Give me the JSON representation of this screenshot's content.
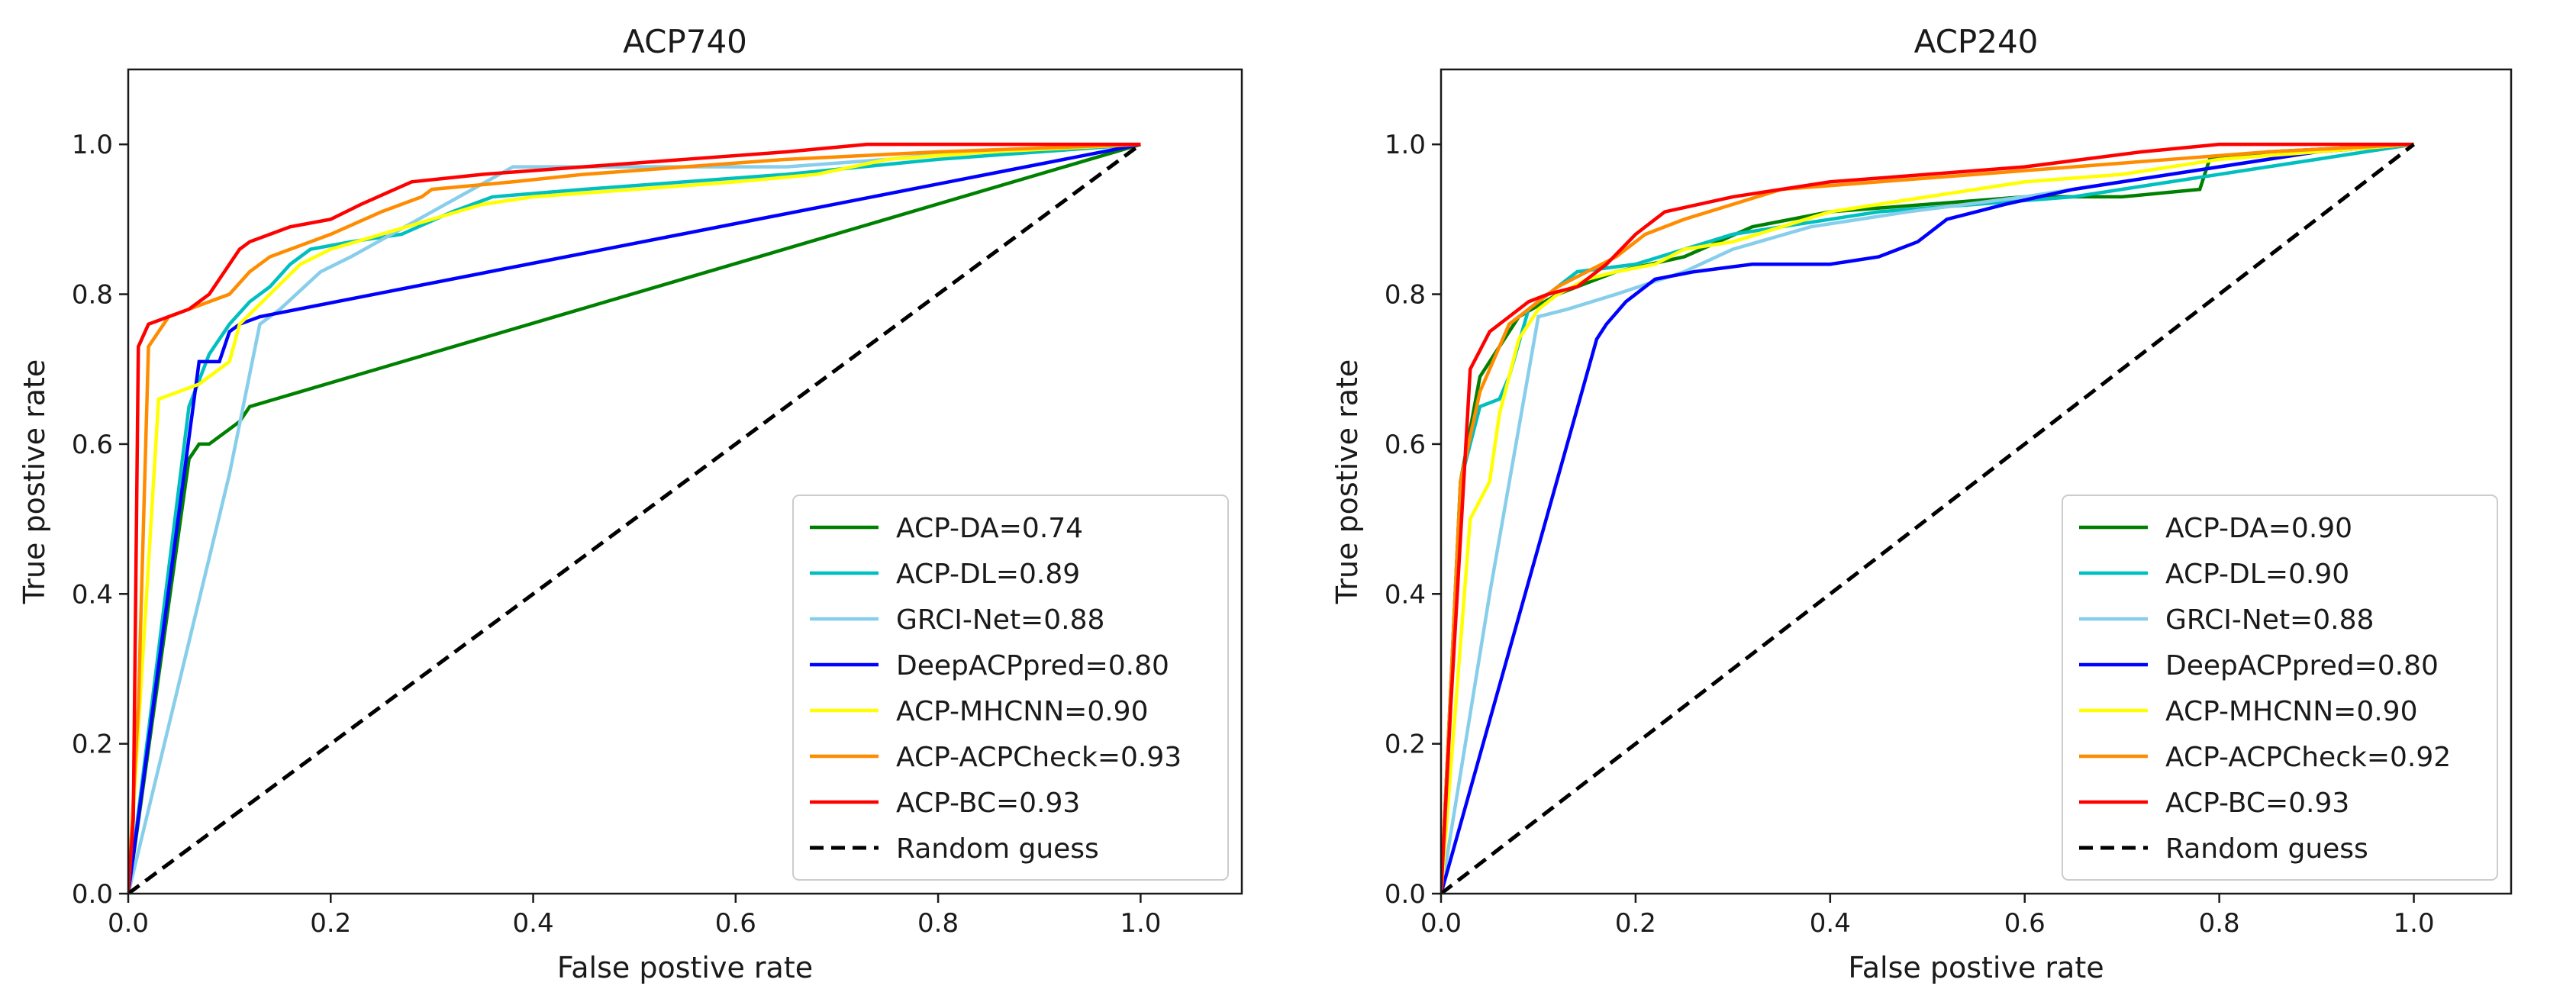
{
  "chart_data": [
    {
      "type": "line",
      "title": "ACP740",
      "xlabel": "False postive rate",
      "ylabel": "True postive rate",
      "xlim": [
        0,
        1.1
      ],
      "ylim": [
        0,
        1.1
      ],
      "xticks": [
        "0.0",
        "0.2",
        "0.4",
        "0.6",
        "0.8",
        "1.0"
      ],
      "yticks": [
        "0.0",
        "0.2",
        "0.4",
        "0.6",
        "0.8",
        "1.0"
      ],
      "legend_position": "lower-right",
      "series": [
        {
          "name": "ACP-DA=0.74",
          "color": "#008000",
          "x": [
            0,
            0.06,
            0.07,
            0.08,
            0.09,
            0.1,
            0.11,
            0.12,
            1.0
          ],
          "y": [
            0,
            0.58,
            0.6,
            0.6,
            0.61,
            0.62,
            0.63,
            0.65,
            1.0
          ]
        },
        {
          "name": "ACP-DL=0.89",
          "color": "#00bfbf",
          "x": [
            0,
            0.06,
            0.08,
            0.1,
            0.12,
            0.14,
            0.16,
            0.18,
            0.22,
            0.27,
            0.32,
            0.36,
            0.45,
            0.55,
            0.65,
            0.8,
            1.0
          ],
          "y": [
            0,
            0.65,
            0.72,
            0.76,
            0.79,
            0.81,
            0.84,
            0.86,
            0.87,
            0.88,
            0.91,
            0.93,
            0.94,
            0.95,
            0.96,
            0.98,
            1.0
          ]
        },
        {
          "name": "GRCI-Net=0.88",
          "color": "#87ceeb",
          "x": [
            0,
            0.1,
            0.13,
            0.15,
            0.19,
            0.22,
            0.26,
            0.3,
            0.38,
            0.5,
            0.65,
            0.75,
            0.82,
            1.0
          ],
          "y": [
            0,
            0.56,
            0.76,
            0.78,
            0.83,
            0.85,
            0.88,
            0.91,
            0.97,
            0.97,
            0.97,
            0.98,
            0.99,
            1.0
          ]
        },
        {
          "name": "DeepACPpred=0.80",
          "color": "#0000ff",
          "x": [
            0,
            0.07,
            0.09,
            0.1,
            0.11,
            0.13,
            1.0
          ],
          "y": [
            0,
            0.71,
            0.71,
            0.75,
            0.76,
            0.77,
            1.0
          ]
        },
        {
          "name": "ACP-MHCNN=0.90",
          "color": "#ffff00",
          "x": [
            0,
            0.03,
            0.07,
            0.1,
            0.11,
            0.14,
            0.17,
            0.2,
            0.25,
            0.3,
            0.35,
            0.4,
            0.5,
            0.6,
            0.68,
            0.75,
            0.85,
            1.0
          ],
          "y": [
            0,
            0.66,
            0.68,
            0.71,
            0.76,
            0.8,
            0.84,
            0.86,
            0.88,
            0.9,
            0.92,
            0.93,
            0.94,
            0.95,
            0.96,
            0.98,
            0.99,
            1.0
          ]
        },
        {
          "name": "ACP-ACPCheck=0.93",
          "color": "#ff8c00",
          "x": [
            0,
            0.01,
            0.02,
            0.04,
            0.06,
            0.08,
            0.1,
            0.12,
            0.14,
            0.16,
            0.2,
            0.25,
            0.29,
            0.3,
            0.38,
            0.45,
            0.55,
            0.65,
            0.8,
            1.0
          ],
          "y": [
            0,
            0.25,
            0.73,
            0.77,
            0.78,
            0.79,
            0.8,
            0.83,
            0.85,
            0.86,
            0.88,
            0.91,
            0.93,
            0.94,
            0.95,
            0.96,
            0.97,
            0.98,
            0.99,
            1.0
          ]
        },
        {
          "name": "ACP-BC=0.93",
          "color": "#ff0000",
          "x": [
            0,
            0.005,
            0.01,
            0.02,
            0.04,
            0.06,
            0.08,
            0.09,
            0.1,
            0.11,
            0.12,
            0.14,
            0.16,
            0.2,
            0.23,
            0.28,
            0.35,
            0.45,
            0.55,
            0.65,
            0.73,
            0.8,
            1.0
          ],
          "y": [
            0,
            0.1,
            0.73,
            0.76,
            0.77,
            0.78,
            0.8,
            0.82,
            0.84,
            0.86,
            0.87,
            0.88,
            0.89,
            0.9,
            0.92,
            0.95,
            0.96,
            0.97,
            0.98,
            0.99,
            1.0,
            1.0,
            1.0
          ]
        },
        {
          "name": "Random guess",
          "color": "#000000",
          "dashed": true,
          "x": [
            0,
            1
          ],
          "y": [
            0,
            1
          ]
        }
      ]
    },
    {
      "type": "line",
      "title": "ACP240",
      "xlabel": "False postive rate",
      "ylabel": "True postive rate",
      "xlim": [
        0,
        1.1
      ],
      "ylim": [
        0,
        1.1
      ],
      "xticks": [
        "0.0",
        "0.2",
        "0.4",
        "0.6",
        "0.8",
        "1.0"
      ],
      "yticks": [
        "0.0",
        "0.2",
        "0.4",
        "0.6",
        "0.8",
        "1.0"
      ],
      "legend_position": "lower-right",
      "series": [
        {
          "name": "ACP-DA=0.90",
          "color": "#008000",
          "x": [
            0,
            0.02,
            0.04,
            0.06,
            0.08,
            0.12,
            0.18,
            0.25,
            0.32,
            0.4,
            0.5,
            0.6,
            0.7,
            0.78,
            0.79,
            0.85,
            1.0
          ],
          "y": [
            0,
            0.55,
            0.69,
            0.73,
            0.77,
            0.8,
            0.83,
            0.85,
            0.89,
            0.91,
            0.92,
            0.93,
            0.93,
            0.94,
            0.98,
            0.99,
            1.0
          ]
        },
        {
          "name": "ACP-DL=0.90",
          "color": "#00bfbf",
          "x": [
            0,
            0.02,
            0.04,
            0.06,
            0.07,
            0.09,
            0.11,
            0.14,
            0.2,
            0.25,
            0.3,
            0.35,
            0.45,
            0.55,
            0.65,
            0.75,
            0.85,
            1.0
          ],
          "y": [
            0,
            0.55,
            0.65,
            0.66,
            0.69,
            0.78,
            0.8,
            0.83,
            0.84,
            0.86,
            0.88,
            0.89,
            0.91,
            0.92,
            0.93,
            0.95,
            0.97,
            1.0
          ]
        },
        {
          "name": "GRCI-Net=0.88",
          "color": "#87ceeb",
          "x": [
            0,
            0.05,
            0.1,
            0.13,
            0.18,
            0.25,
            0.3,
            0.38,
            0.48,
            0.6,
            0.7,
            0.8,
            0.9,
            1.0
          ],
          "y": [
            0,
            0.4,
            0.77,
            0.78,
            0.8,
            0.83,
            0.86,
            0.89,
            0.91,
            0.93,
            0.95,
            0.97,
            0.99,
            1.0
          ]
        },
        {
          "name": "DeepACPpred=0.80",
          "color": "#0000ff",
          "x": [
            0,
            0.16,
            0.17,
            0.19,
            0.2,
            0.22,
            0.26,
            0.32,
            0.4,
            0.45,
            0.47,
            0.49,
            0.5,
            0.52,
            0.55,
            0.58,
            0.65,
            0.7,
            0.8,
            0.9,
            1.0
          ],
          "y": [
            0,
            0.74,
            0.76,
            0.79,
            0.8,
            0.82,
            0.83,
            0.84,
            0.84,
            0.85,
            0.86,
            0.87,
            0.88,
            0.9,
            0.91,
            0.92,
            0.94,
            0.95,
            0.97,
            0.99,
            1.0
          ]
        },
        {
          "name": "ACP-MHCNN=0.90",
          "color": "#ffff00",
          "x": [
            0,
            0.03,
            0.05,
            0.06,
            0.08,
            0.1,
            0.12,
            0.15,
            0.18,
            0.22,
            0.25,
            0.3,
            0.35,
            0.4,
            0.5,
            0.6,
            0.7,
            0.8,
            0.9,
            1.0
          ],
          "y": [
            0,
            0.5,
            0.55,
            0.64,
            0.74,
            0.78,
            0.8,
            0.82,
            0.83,
            0.84,
            0.86,
            0.87,
            0.89,
            0.91,
            0.93,
            0.95,
            0.96,
            0.98,
            0.99,
            1.0
          ]
        },
        {
          "name": "ACP-ACPCheck=0.92",
          "color": "#ff8c00",
          "x": [
            0,
            0.02,
            0.04,
            0.05,
            0.07,
            0.09,
            0.12,
            0.15,
            0.18,
            0.21,
            0.25,
            0.3,
            0.35,
            0.45,
            0.55,
            0.65,
            0.75,
            0.85,
            1.0
          ],
          "y": [
            0,
            0.55,
            0.67,
            0.7,
            0.76,
            0.78,
            0.81,
            0.83,
            0.85,
            0.88,
            0.9,
            0.92,
            0.94,
            0.95,
            0.96,
            0.97,
            0.98,
            0.99,
            1.0
          ]
        },
        {
          "name": "ACP-BC=0.93",
          "color": "#ff0000",
          "x": [
            0,
            0.01,
            0.03,
            0.05,
            0.07,
            0.09,
            0.11,
            0.14,
            0.17,
            0.2,
            0.23,
            0.3,
            0.4,
            0.5,
            0.6,
            0.72,
            0.8,
            0.9,
            1.0
          ],
          "y": [
            0,
            0.25,
            0.7,
            0.75,
            0.77,
            0.79,
            0.8,
            0.81,
            0.84,
            0.88,
            0.91,
            0.93,
            0.95,
            0.96,
            0.97,
            0.99,
            1.0,
            1.0,
            1.0
          ]
        },
        {
          "name": "Random guess",
          "color": "#000000",
          "dashed": true,
          "x": [
            0,
            1
          ],
          "y": [
            0,
            1
          ]
        }
      ]
    }
  ]
}
